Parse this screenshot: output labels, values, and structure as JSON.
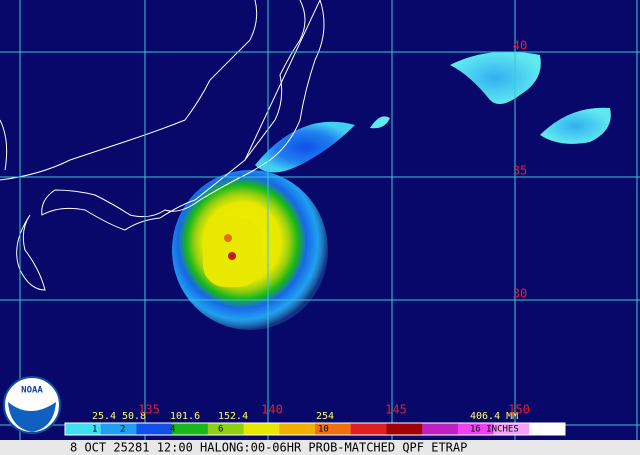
{
  "map": {
    "lat_labels": [
      "40",
      "35",
      "30"
    ],
    "lon_labels": [
      "135",
      "140",
      "145",
      "150"
    ],
    "legend": {
      "mm_labels": [
        "25.4",
        "50.8",
        "101.6",
        "152.4",
        "254",
        "406.4 MM"
      ],
      "inch_labels": [
        "1",
        "2",
        "4",
        "6",
        "10",
        "16 INCHES"
      ]
    },
    "caption": "8 OCT 25281 12:00 HALONG:00-06HR PROB-MATCHED QPF ETRAP",
    "logo": "NOAA"
  }
}
